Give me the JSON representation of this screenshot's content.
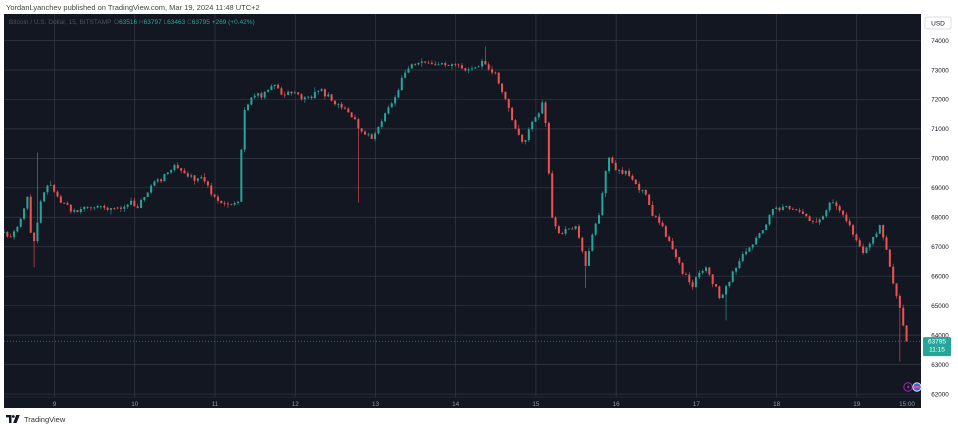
{
  "publication": {
    "byline": "YordanLyanchev published on TradingView.com, Mar 19, 2024 11:48 UTC+2"
  },
  "footer": {
    "brand": "TradingView",
    "logo_icon": "tradingview-logo-icon"
  },
  "legend": {
    "symbol": "Bitcoin / U.S. Dollar, 15, BITSTAMP",
    "open_label": "O",
    "open": "63516",
    "high_label": "H",
    "high": "63797",
    "low_label": "L",
    "low": "63463",
    "close_label": "C",
    "close": "63795",
    "change": "+269 (+0.42%)"
  },
  "price_scale": {
    "currency_label": "USD",
    "last_price": "63795",
    "countdown": "11:15"
  },
  "colors": {
    "background": "#131722",
    "grid": "#363a45",
    "up": "#26a69a",
    "down": "#ef5350",
    "axis_text": "#9598a1",
    "badge": "#26a69a"
  },
  "chart_data": {
    "type": "candlestick",
    "interval": "15",
    "title": "Bitcoin / U.S. Dollar, 15, BITSTAMP",
    "ylim": [
      61900,
      74900
    ],
    "y_ticks": [
      62000,
      63000,
      64000,
      65000,
      66000,
      67000,
      68000,
      69000,
      70000,
      71000,
      72000,
      73000,
      74000
    ],
    "x_ticks": [
      {
        "label": "9",
        "day": 9
      },
      {
        "label": "10",
        "day": 10
      },
      {
        "label": "11",
        "day": 11
      },
      {
        "label": "12",
        "day": 12
      },
      {
        "label": "13",
        "day": 13
      },
      {
        "label": "14",
        "day": 14
      },
      {
        "label": "15",
        "day": 15
      },
      {
        "label": "16",
        "day": 16
      },
      {
        "label": "17",
        "day": 17
      },
      {
        "label": "18",
        "day": 18
      },
      {
        "label": "19",
        "day": 19
      },
      {
        "label": "15:00",
        "day": 19.625
      }
    ],
    "x_range": [
      8.37,
      19.8
    ],
    "grid": true,
    "path_days": [
      8.37,
      8.42,
      8.55,
      8.67,
      8.72,
      8.83,
      8.92,
      9.12,
      9.35,
      9.8,
      10.1,
      10.2,
      10.5,
      10.85,
      11.0,
      11.05,
      11.3,
      11.35,
      11.45,
      11.6,
      11.75,
      11.9,
      12.1,
      12.3,
      12.6,
      12.75,
      12.8,
      12.95,
      13.2,
      13.4,
      13.6,
      13.9,
      14.15,
      14.35,
      14.5,
      14.6,
      14.75,
      14.85,
      14.98,
      15.1,
      15.2,
      15.3,
      15.5,
      15.62,
      15.8,
      15.9,
      16.1,
      16.3,
      16.5,
      16.7,
      16.82,
      16.95,
      17.05,
      17.15,
      17.2,
      17.3,
      17.6,
      17.8,
      18.0,
      18.3,
      18.5,
      18.7,
      18.9,
      19.05,
      19.15,
      19.3,
      19.45,
      19.55,
      19.6,
      19.62
    ],
    "path_prices": [
      67500,
      67300,
      67600,
      68800,
      66800,
      68600,
      69100,
      68400,
      68300,
      68300,
      68500,
      68900,
      69700,
      69300,
      68800,
      68500,
      68500,
      71800,
      72100,
      72200,
      72600,
      72200,
      72000,
      72300,
      71700,
      71200,
      71000,
      70500,
      71800,
      73200,
      73300,
      73000,
      73000,
      73300,
      72900,
      72200,
      71000,
      70500,
      71300,
      71900,
      68000,
      67400,
      68000,
      66500,
      68200,
      70000,
      69500,
      69000,
      68000,
      67000,
      66200,
      65500,
      66000,
      66300,
      65800,
      65200,
      66800,
      67400,
      68300,
      68100,
      67800,
      68500,
      67900,
      67000,
      67000,
      67800,
      65800,
      64700,
      64000,
      63795
    ],
    "notable_extremes": [
      {
        "day": 8.77,
        "price": 70200
      },
      {
        "day": 8.73,
        "price": 66300
      },
      {
        "day": 12.78,
        "price": 68500
      },
      {
        "day": 14.35,
        "price": 73800
      },
      {
        "day": 15.62,
        "price": 65600
      },
      {
        "day": 17.35,
        "price": 64500
      },
      {
        "day": 19.55,
        "price": 63100
      }
    ],
    "volatility": 150,
    "seed": 20240319,
    "last_price": 63795
  }
}
